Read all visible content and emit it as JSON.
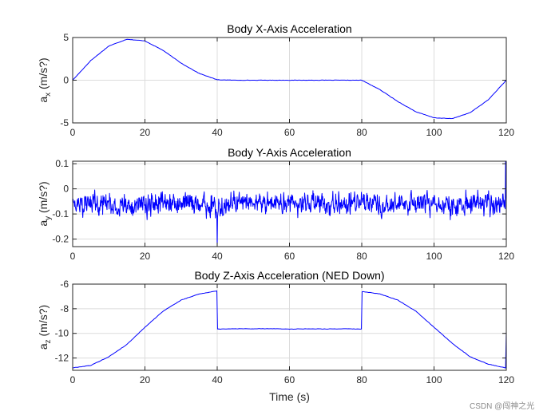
{
  "watermark": "CSDN @闯神之光",
  "colors": {
    "series": "#0000ff",
    "grid": "#dcdcdc",
    "axis": "#262626"
  },
  "chart_data": [
    {
      "type": "line",
      "title": "Body X-Axis Acceleration",
      "ylabel_base": "a",
      "ylabel_sub": "x",
      "ylabel_unit": " (m/s?)",
      "xlabel": "",
      "xlim": [
        0,
        120
      ],
      "ylim": [
        -5,
        5
      ],
      "xticks": [
        0,
        20,
        40,
        60,
        80,
        100,
        120
      ],
      "yticks": [
        -5,
        0,
        5
      ],
      "grid": true,
      "x": [
        0,
        5,
        10,
        15,
        20,
        25,
        30,
        35,
        40,
        45,
        50,
        55,
        60,
        65,
        70,
        75,
        80,
        85,
        90,
        95,
        100,
        105,
        110,
        115,
        120
      ],
      "series": [
        {
          "values": [
            0.0,
            2.3,
            4.0,
            4.8,
            4.6,
            3.5,
            2.0,
            0.8,
            0.05,
            0.0,
            0.0,
            0.0,
            0.0,
            0.0,
            0.0,
            0.0,
            0.0,
            -1.1,
            -2.5,
            -3.7,
            -4.4,
            -4.5,
            -3.8,
            -2.3,
            0.0
          ]
        }
      ]
    },
    {
      "type": "line",
      "title": "Body Y-Axis Acceleration",
      "ylabel_base": "a",
      "ylabel_sub": "y",
      "ylabel_unit": " (m/s?)",
      "xlabel": "",
      "xlim": [
        0,
        120
      ],
      "ylim": [
        -0.23,
        0.11
      ],
      "xticks": [
        0,
        20,
        40,
        60,
        80,
        100,
        120
      ],
      "yticks": [
        -0.2,
        -0.1,
        0,
        0.1
      ],
      "yticklabels": [
        "-0.2",
        "-0.1",
        "0",
        "0.1"
      ],
      "grid": true,
      "noise": {
        "mean": -0.06,
        "std": 0.045,
        "min": -0.23,
        "max": 0.11
      },
      "peaks": [
        {
          "x": 40,
          "y": -0.23
        },
        {
          "x": 119.8,
          "y": 0.11
        }
      ]
    },
    {
      "type": "line",
      "title": "Body Z-Axis Acceleration (NED Down)",
      "ylabel_base": "a",
      "ylabel_sub": "z",
      "ylabel_unit": " (m/s?)",
      "xlabel": "Time (s)",
      "xlim": [
        0,
        120
      ],
      "ylim": [
        -13,
        -6
      ],
      "xticks": [
        0,
        20,
        40,
        60,
        80,
        100,
        120
      ],
      "yticks": [
        -12,
        -10,
        -8,
        -6
      ],
      "grid": true,
      "x": [
        0,
        5,
        10,
        15,
        20,
        25,
        30,
        35,
        39.9,
        40.1,
        45,
        50,
        55,
        60,
        65,
        70,
        75,
        79.9,
        80.1,
        85,
        90,
        95,
        100,
        105,
        110,
        115,
        119.8,
        120
      ],
      "series": [
        {
          "values": [
            -12.8,
            -12.6,
            -11.9,
            -10.9,
            -9.5,
            -8.2,
            -7.3,
            -6.8,
            -6.55,
            -9.65,
            -9.62,
            -9.63,
            -9.62,
            -9.65,
            -9.63,
            -9.64,
            -9.63,
            -9.65,
            -6.6,
            -6.8,
            -7.3,
            -8.2,
            -9.5,
            -10.8,
            -11.9,
            -12.5,
            -12.8,
            -9.8
          ]
        }
      ]
    }
  ]
}
